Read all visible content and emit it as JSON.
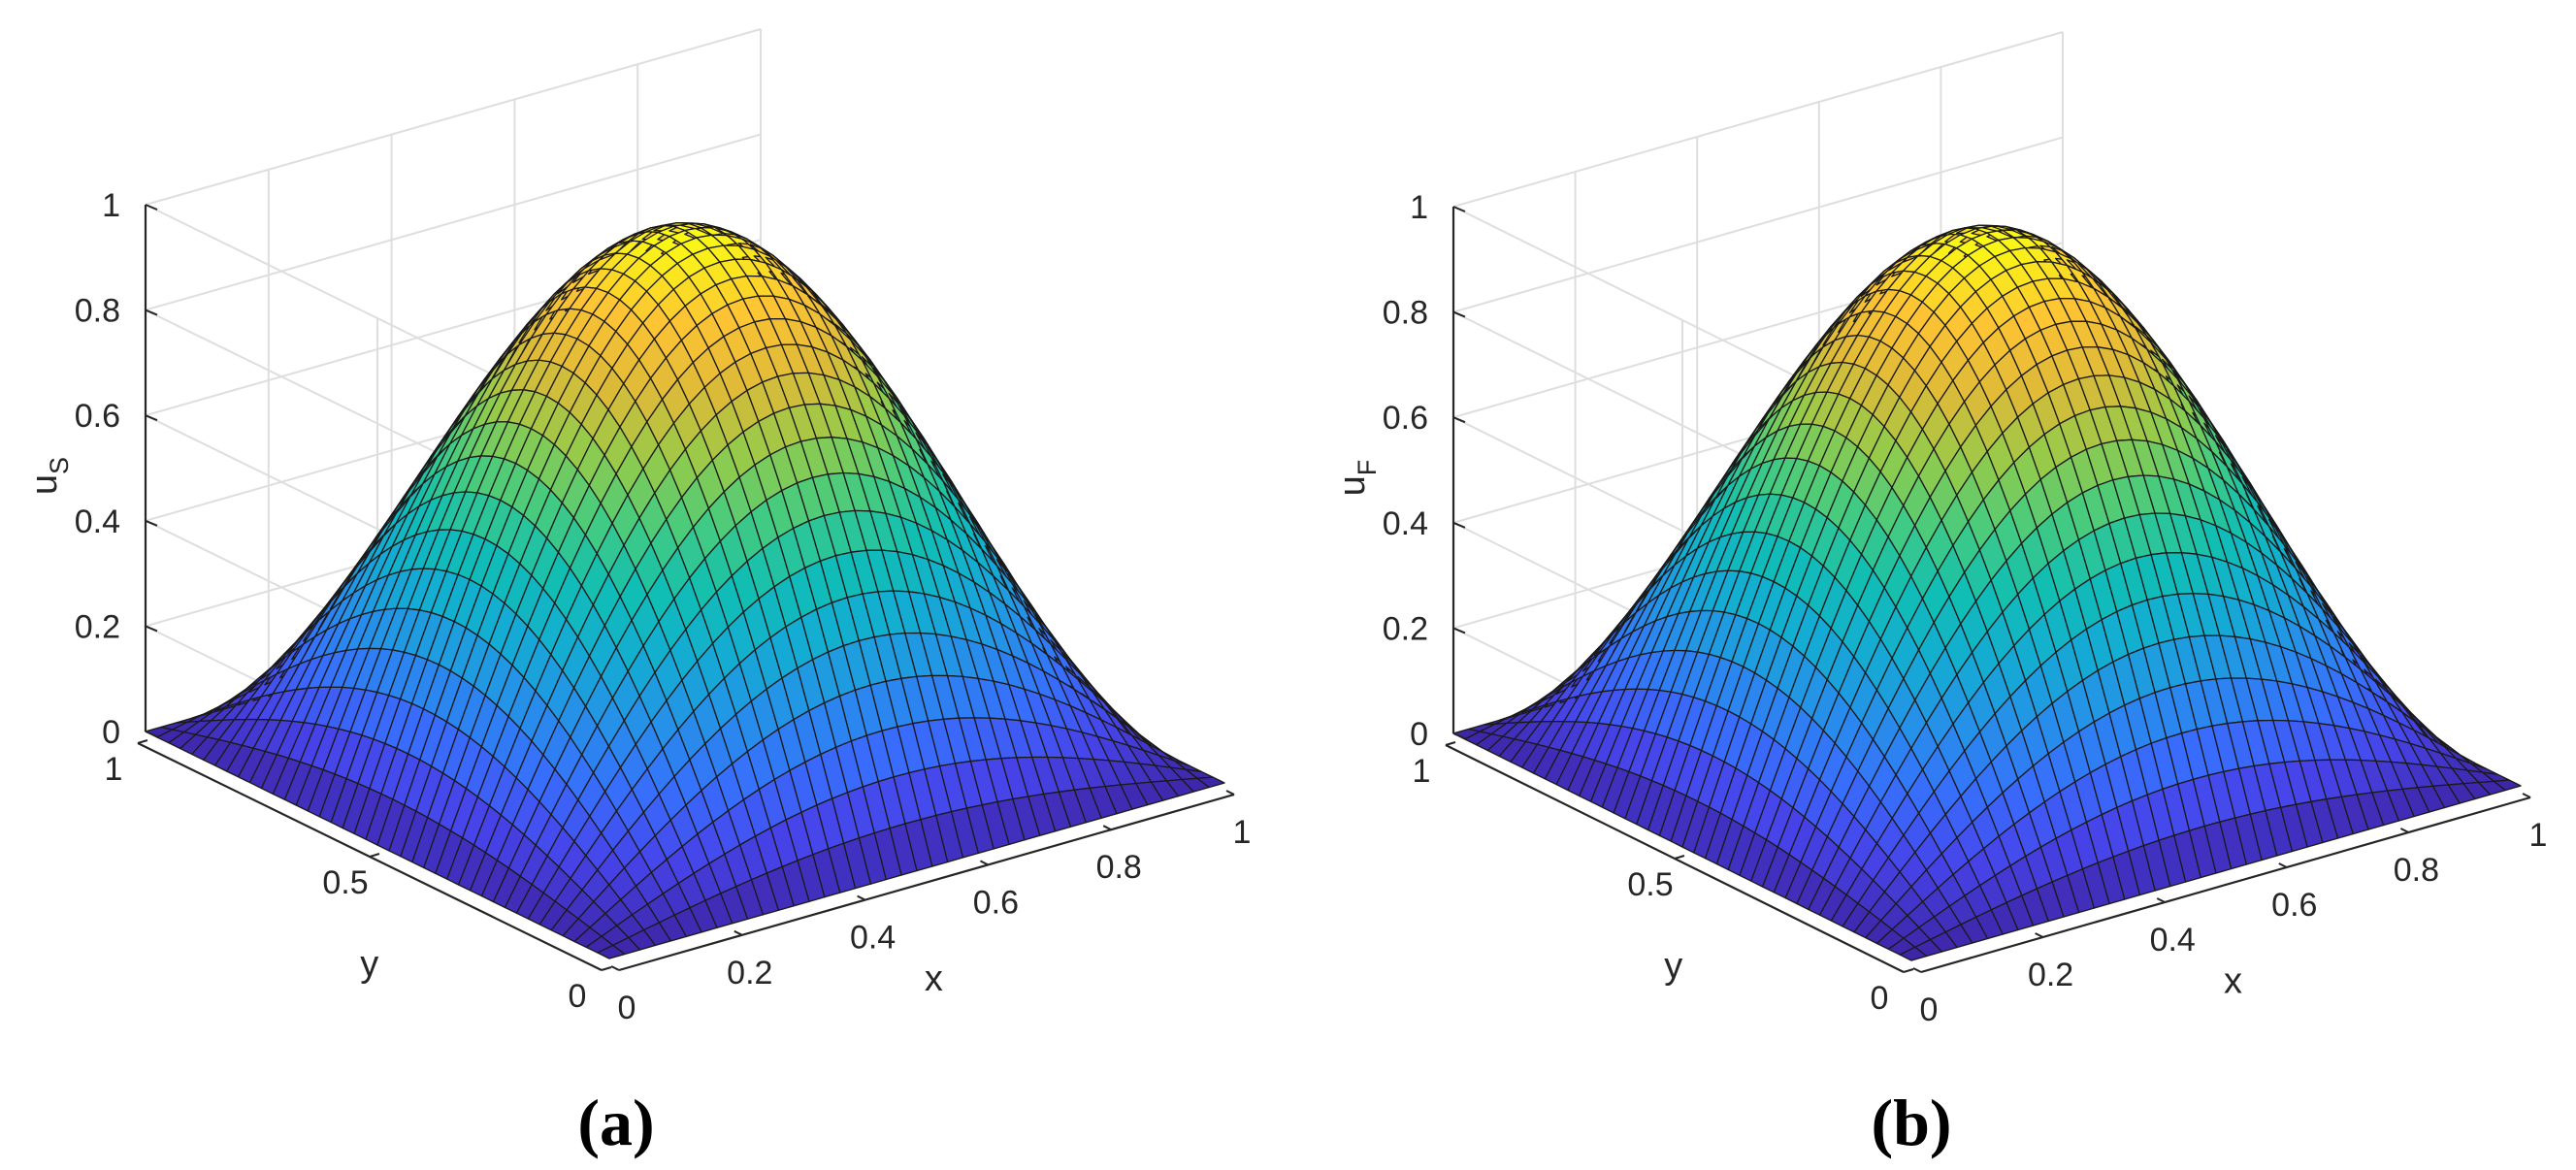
{
  "figure": {
    "panels": [
      {
        "label": "(a)",
        "xlabel": "x",
        "ylabel": "y",
        "zlabel": "u",
        "zlabel_sub": "S"
      },
      {
        "label": "(b)",
        "xlabel": "x",
        "ylabel": "y",
        "zlabel": "u",
        "zlabel_sub": "F"
      }
    ]
  },
  "chart_data": [
    {
      "type": "surface",
      "function": "u = sin(pi*x) * sin(pi*y)",
      "x_range": [
        0,
        1
      ],
      "y_range": [
        0,
        1
      ],
      "z_range": [
        0,
        1
      ],
      "grid_points": 41,
      "colormap": "parula",
      "grid": true,
      "x_ticks": [
        0,
        0.2,
        0.4,
        0.6,
        0.8,
        1
      ],
      "x_tick_labels": [
        "0",
        "0.2",
        "0.4",
        "0.6",
        "0.8",
        "1"
      ],
      "y_ticks": [
        0,
        0.5,
        1
      ],
      "y_tick_labels": [
        "0",
        "0.5",
        "1"
      ],
      "z_ticks": [
        0,
        0.2,
        0.4,
        0.6,
        0.8,
        1
      ],
      "z_tick_labels": [
        "0",
        "0.2",
        "0.4",
        "0.6",
        "0.8",
        "1"
      ],
      "xlabel": "x",
      "ylabel": "y",
      "zlabel": "u_S",
      "peak": {
        "x": 0.5,
        "y": 0.5,
        "z": 1
      }
    },
    {
      "type": "surface",
      "function": "u = sin(pi*x) * sin(pi*y)",
      "x_range": [
        0,
        1
      ],
      "y_range": [
        0,
        1
      ],
      "z_range": [
        0,
        1
      ],
      "grid_points": 41,
      "colormap": "parula",
      "grid": true,
      "x_ticks": [
        0,
        0.2,
        0.4,
        0.6,
        0.8,
        1
      ],
      "x_tick_labels": [
        "0",
        "0.2",
        "0.4",
        "0.6",
        "0.8",
        "1"
      ],
      "y_ticks": [
        0,
        0.5,
        1
      ],
      "y_tick_labels": [
        "0",
        "0.5",
        "1"
      ],
      "z_ticks": [
        0,
        0.2,
        0.4,
        0.6,
        0.8,
        1
      ],
      "z_tick_labels": [
        "0",
        "0.2",
        "0.4",
        "0.6",
        "0.8",
        "1"
      ],
      "xlabel": "x",
      "ylabel": "y",
      "zlabel": "u_F",
      "peak": {
        "x": 0.5,
        "y": 0.5,
        "z": 1
      }
    }
  ]
}
